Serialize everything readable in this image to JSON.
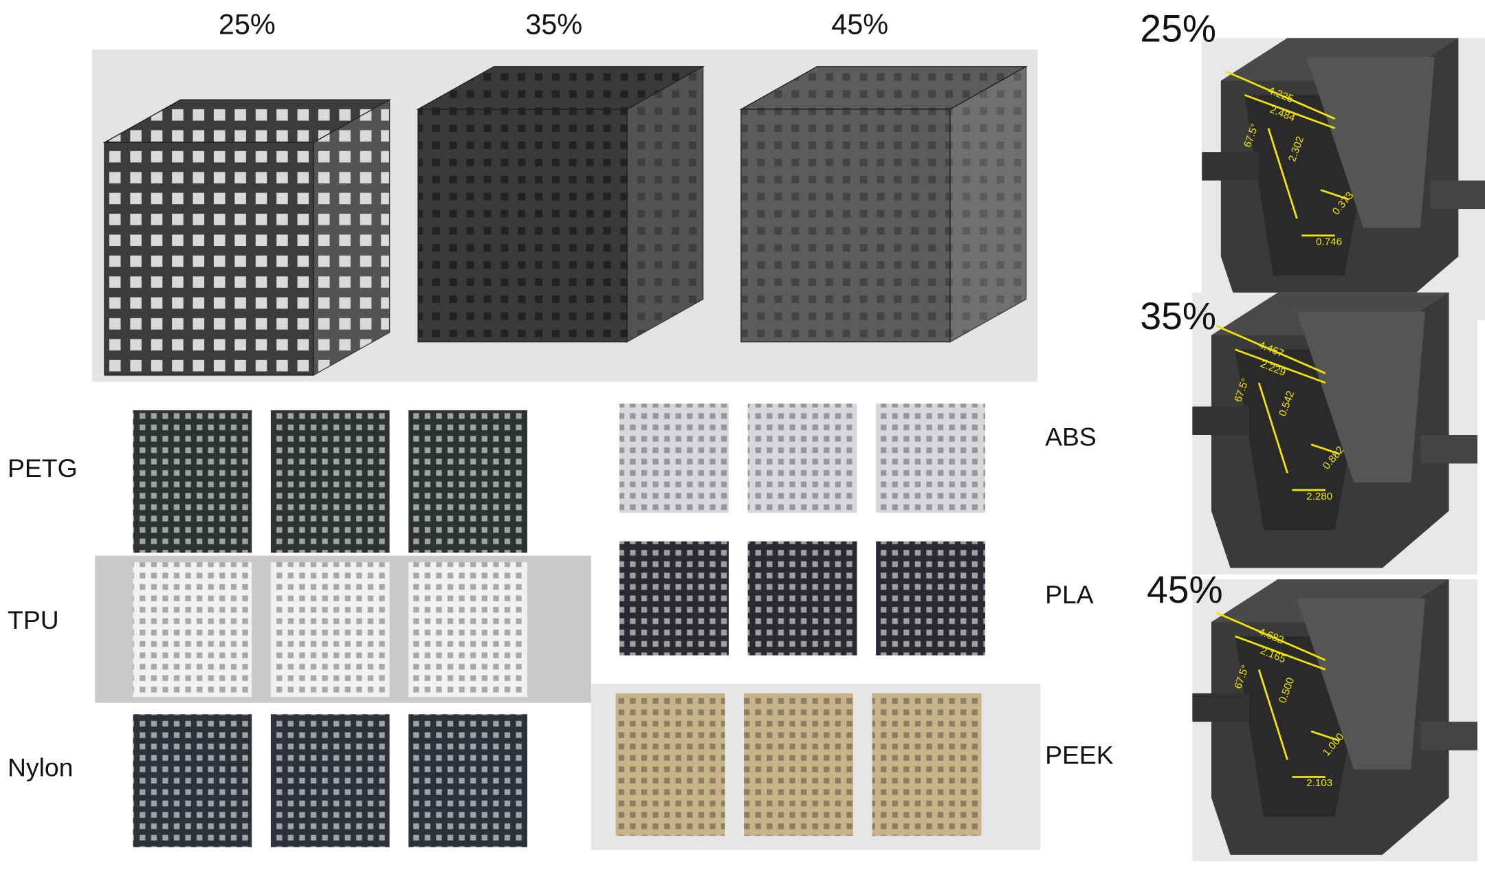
{
  "porosity_labels": [
    "25%",
    "35%",
    "45%"
  ],
  "materials_left": [
    "PETG",
    "TPU",
    "Nylon"
  ],
  "materials_right": [
    "ABS",
    "PLA",
    "PEEK"
  ],
  "unit_cells": [
    {
      "label": "25%",
      "dimensions": [
        "4.225",
        "2.484",
        "67.5°",
        "2.302",
        "0.373",
        "0.746"
      ]
    },
    {
      "label": "35%",
      "dimensions": [
        "4.467",
        "2.229",
        "67.5°",
        "0.542",
        "0.882",
        "2.280"
      ]
    },
    {
      "label": "45%",
      "dimensions": [
        "4.682",
        "2.165",
        "67.5°",
        "0.500",
        "1.000",
        "2.103"
      ]
    }
  ]
}
